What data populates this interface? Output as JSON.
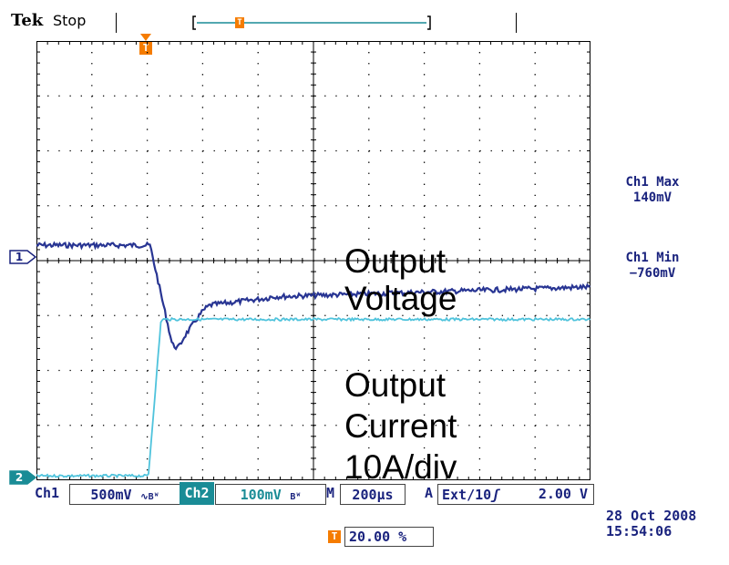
{
  "header": {
    "brand": "Tek",
    "status": "Stop"
  },
  "trigger": {
    "symbol": "T",
    "position_percent": 20.0,
    "position_label": "20.00 %"
  },
  "channel_markers": {
    "ch1": "1",
    "ch2": "2"
  },
  "annotations": {
    "voltage_line1": "Output",
    "voltage_line2": "Voltage",
    "current_line1": "Output",
    "current_line2": "Current",
    "current_line3": "10A/div"
  },
  "measurements": {
    "ch1_max_label": "Ch1 Max",
    "ch1_max_value": "140mV",
    "ch1_min_label": "Ch1 Min",
    "ch1_min_value": "−760mV"
  },
  "settings_bar": {
    "ch1_label": "Ch1",
    "ch1_scale": "500mV",
    "ch1_flags": "∿Bᵂ",
    "ch2_label": "Ch2",
    "ch2_scale": "100mV",
    "ch2_flags": "Bᵂ",
    "timebase_label": "M",
    "timebase_value": "200µs",
    "trigger_label": "A",
    "trigger_source": "Ext/10",
    "trigger_slope": "ʃ",
    "trigger_level": "2.00 V"
  },
  "timestamp": {
    "date": "28 Oct  2008",
    "time": "15:54:06"
  },
  "colors": {
    "ch1_trace": "#283593",
    "ch2_trace": "#4fc3dc",
    "trigger": "#f57c00",
    "grid": "#000000"
  }
}
